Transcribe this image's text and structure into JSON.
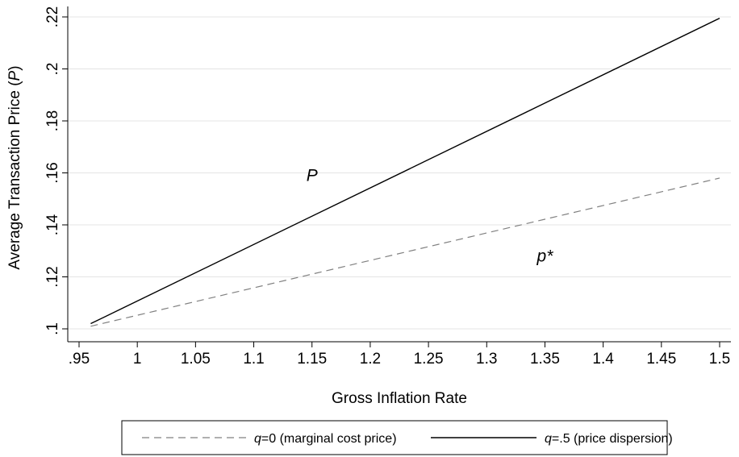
{
  "chart_data": {
    "type": "line",
    "xlabel": "Gross Inflation Rate",
    "ylabel_prefix": "Average Transaction Price (",
    "ylabel_symbol": "P",
    "ylabel_suffix": ")",
    "xlim": [
      0.95,
      1.5
    ],
    "ylim": [
      0.1,
      0.22
    ],
    "xticks": [
      0.95,
      1,
      1.05,
      1.1,
      1.15,
      1.2,
      1.25,
      1.3,
      1.35,
      1.4,
      1.45,
      1.5
    ],
    "xtick_labels": [
      ".95",
      "1",
      "1.05",
      "1.1",
      "1.15",
      "1.2",
      "1.25",
      "1.3",
      "1.35",
      "1.4",
      "1.45",
      "1.5"
    ],
    "yticks": [
      0.1,
      0.12,
      0.14,
      0.16,
      0.18,
      0.2,
      0.22
    ],
    "ytick_labels": [
      ".1",
      ".12",
      ".14",
      ".16",
      ".18",
      ".2",
      ".22"
    ],
    "grid": "horizontal",
    "legend_position": "bottom",
    "series": [
      {
        "legend_symbol": "q",
        "legend_text": "=0 (marginal cost price)",
        "style": "dashed",
        "color": "#808080",
        "x": [
          0.96,
          1.5
        ],
        "y": [
          0.101,
          0.158
        ]
      },
      {
        "legend_symbol": "q",
        "legend_text": "=.5 (price dispersion)",
        "style": "solid",
        "color": "#000000",
        "x": [
          0.96,
          1.5
        ],
        "y": [
          0.102,
          0.2195
        ]
      }
    ],
    "annotations": [
      {
        "text": "P",
        "x": 1.15,
        "y": 0.159
      },
      {
        "text": "p*",
        "x": 1.35,
        "y": 0.128
      }
    ]
  }
}
